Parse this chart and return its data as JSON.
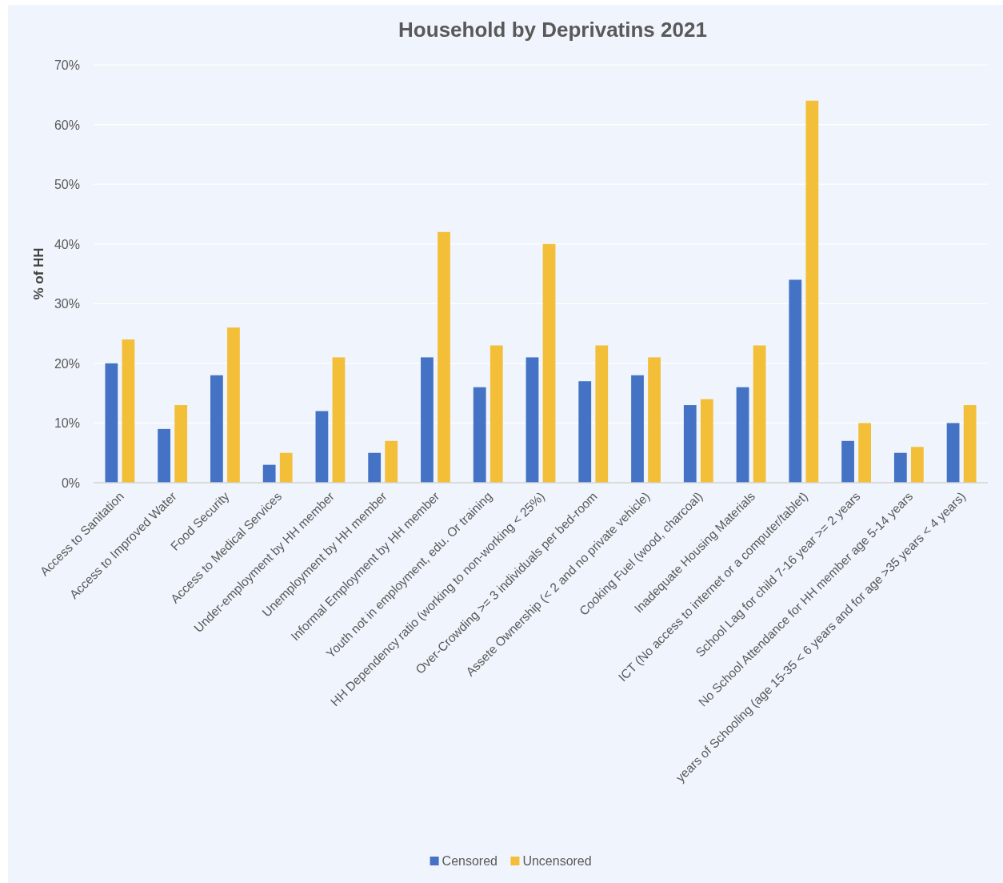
{
  "chart_data": {
    "type": "bar",
    "title": "Household by Deprivatins  2021",
    "ylabel": "% of HH",
    "categories": [
      "Access to Sanitation",
      "Access to Improved Water",
      "Food Security",
      "Access to Medical Services",
      "Under-employment by HH member",
      "Unemployment by HH member",
      "Informal Employment by HH member",
      "Youth not in employment, edu. Or training",
      "HH Dependency ratio (working to non-working < 25%)",
      "Over-Crowding >= 3 individuals per bed-room",
      "Assete Ownership (< 2 and no private vehicle)",
      "Cooking Fuel (wood, charcoal)",
      "Inadequate Housing Materials",
      "ICT (No access to internet or a computer/tablet)",
      "School Lag for child 7-16 year >= 2 years",
      "No School Attendance for HH member  age 5-14 years",
      "years of Schooling (age 15-35 < 6 years and for age >35 years < 4 years)"
    ],
    "series": [
      {
        "name": "Censored",
        "color": "#4472c4",
        "values": [
          20,
          9,
          18,
          3,
          12,
          5,
          21,
          16,
          21,
          17,
          18,
          13,
          16,
          34,
          7,
          5,
          10
        ]
      },
      {
        "name": "Uncensored",
        "color": "#f4bf38",
        "values": [
          24,
          13,
          26,
          5,
          21,
          7,
          42,
          23,
          40,
          23,
          21,
          14,
          23,
          64,
          10,
          6,
          13
        ]
      }
    ],
    "ylim": [
      0,
      70
    ],
    "yticks": [
      {
        "value": 0,
        "label": "0%"
      },
      {
        "value": 10,
        "label": "10%"
      },
      {
        "value": 20,
        "label": "20%"
      },
      {
        "value": 30,
        "label": "30%"
      },
      {
        "value": 40,
        "label": "40%"
      },
      {
        "value": 50,
        "label": "50%"
      },
      {
        "value": 60,
        "label": "60%"
      },
      {
        "value": 70,
        "label": "70%"
      }
    ],
    "grid": "y",
    "legend": "bottom"
  }
}
